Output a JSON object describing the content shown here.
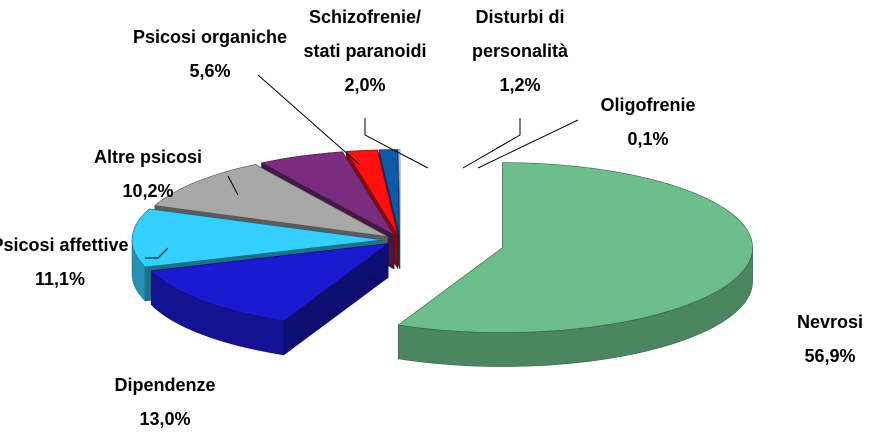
{
  "chart_data": {
    "type": "pie3d",
    "categories": [
      "Nevrosi",
      "Dipendenze",
      "Psicosi affettive",
      "Altre psicosi",
      "Psicosi organiche",
      "Schizofrenie/\nstati paranoidi",
      "Disturbi di\npersonalità",
      "Oligofrenie"
    ],
    "values": [
      56.9,
      13.0,
      11.1,
      10.2,
      5.6,
      2.0,
      1.2,
      0.1
    ],
    "value_labels": [
      "56,9%",
      "13,0%",
      "11,1%",
      "10,2%",
      "5,6%",
      "2,0%",
      "1,2%",
      "0,1%"
    ],
    "colors": [
      "#6cbf8a",
      "#1a1ad0",
      "#33d0ff",
      "#a8a8a8",
      "#7a2c7e",
      "#ff1010",
      "#0a5aa8",
      "#e8e8e8"
    ]
  }
}
